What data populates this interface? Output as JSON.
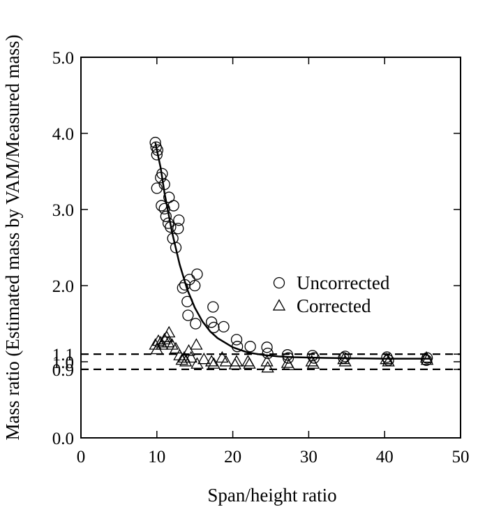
{
  "chart_data": {
    "type": "scatter",
    "xlabel": "Span/height ratio",
    "ylabel": "Mass ratio (Estimated mass by VAM/Measured mass)",
    "xlim": [
      0,
      50
    ],
    "ylim": [
      0,
      5.0
    ],
    "x_ticks": [
      0,
      10,
      20,
      30,
      40,
      50
    ],
    "x_tick_labels": [
      "0",
      "10",
      "20",
      "30",
      "40",
      "50"
    ],
    "y_ticks": [
      0,
      0.9,
      1.0,
      1.1,
      2.0,
      3.0,
      4.0,
      5.0
    ],
    "y_tick_labels": [
      "0.0",
      "0.9",
      "1.0",
      "1.1",
      "2.0",
      "3.0",
      "4.0",
      "5.0"
    ],
    "grid": false,
    "legend_position": "right",
    "reference_lines": [
      {
        "y": 1.1,
        "style": "dashed"
      },
      {
        "y": 0.9,
        "style": "dashed"
      }
    ],
    "series": [
      {
        "name": "Uncorrected",
        "marker": "circle",
        "points": [
          [
            9.8,
            3.88
          ],
          [
            9.9,
            3.82
          ],
          [
            10.0,
            3.72
          ],
          [
            10.1,
            3.78
          ],
          [
            10.0,
            3.28
          ],
          [
            10.5,
            3.42
          ],
          [
            10.7,
            3.47
          ],
          [
            10.6,
            3.05
          ],
          [
            11.0,
            3.33
          ],
          [
            11.0,
            3.01
          ],
          [
            11.2,
            2.91
          ],
          [
            11.5,
            2.82
          ],
          [
            11.6,
            3.16
          ],
          [
            11.8,
            2.77
          ],
          [
            12.1,
            2.62
          ],
          [
            12.2,
            3.05
          ],
          [
            12.5,
            2.5
          ],
          [
            12.8,
            2.75
          ],
          [
            12.9,
            2.86
          ],
          [
            13.4,
            1.97
          ],
          [
            13.7,
            2.01
          ],
          [
            14.0,
            1.79
          ],
          [
            14.1,
            1.61
          ],
          [
            14.3,
            2.08
          ],
          [
            15.0,
            2.0
          ],
          [
            15.1,
            1.5
          ],
          [
            15.3,
            2.15
          ],
          [
            17.2,
            1.52
          ],
          [
            17.4,
            1.72
          ],
          [
            17.5,
            1.45
          ],
          [
            18.8,
            1.46
          ],
          [
            20.5,
            1.29
          ],
          [
            20.6,
            1.2
          ],
          [
            22.3,
            1.2
          ],
          [
            24.5,
            1.19
          ],
          [
            24.6,
            1.11
          ],
          [
            27.2,
            1.09
          ],
          [
            27.3,
            1.05
          ],
          [
            30.5,
            1.08
          ],
          [
            30.7,
            1.05
          ],
          [
            34.6,
            1.05
          ],
          [
            34.8,
            1.07
          ],
          [
            40.3,
            1.06
          ],
          [
            40.5,
            1.02
          ],
          [
            45.5,
            1.02
          ],
          [
            45.6,
            1.05
          ]
        ]
      },
      {
        "name": "Corrected",
        "marker": "triangle",
        "points": [
          [
            9.8,
            1.22
          ],
          [
            10.0,
            1.16
          ],
          [
            10.2,
            1.27
          ],
          [
            10.5,
            1.25
          ],
          [
            10.7,
            1.22
          ],
          [
            11.0,
            1.29
          ],
          [
            11.3,
            1.32
          ],
          [
            11.5,
            1.25
          ],
          [
            11.6,
            1.38
          ],
          [
            12.0,
            1.22
          ],
          [
            12.5,
            1.17
          ],
          [
            13.0,
            1.08
          ],
          [
            13.3,
            1.02
          ],
          [
            13.6,
            1.05
          ],
          [
            13.8,
            1.0
          ],
          [
            14.2,
            1.14
          ],
          [
            14.5,
            1.05
          ],
          [
            15.2,
            1.22
          ],
          [
            15.3,
            0.97
          ],
          [
            16.2,
            1.03
          ],
          [
            17.2,
            1.0
          ],
          [
            17.5,
            0.97
          ],
          [
            18.6,
            1.05
          ],
          [
            19.1,
            1.0
          ],
          [
            20.3,
            0.96
          ],
          [
            20.5,
            1.0
          ],
          [
            22.0,
            1.0
          ],
          [
            22.2,
            0.97
          ],
          [
            24.5,
            1.0
          ],
          [
            24.6,
            0.92
          ],
          [
            27.2,
            0.98
          ],
          [
            27.4,
            0.95
          ],
          [
            30.4,
            1.0
          ],
          [
            30.6,
            0.97
          ],
          [
            34.6,
            1.03
          ],
          [
            34.8,
            1.0
          ],
          [
            40.2,
            1.03
          ],
          [
            40.5,
            1.0
          ],
          [
            45.5,
            1.05
          ],
          [
            45.6,
            1.02
          ]
        ]
      }
    ],
    "fit_curve": {
      "style": "solid",
      "points": [
        [
          9.8,
          3.88
        ],
        [
          10.5,
          3.55
        ],
        [
          11.0,
          3.22
        ],
        [
          12.0,
          2.7
        ],
        [
          13.0,
          2.28
        ],
        [
          14.0,
          1.95
        ],
        [
          15.0,
          1.71
        ],
        [
          16.0,
          1.53
        ],
        [
          17.0,
          1.4
        ],
        [
          18.0,
          1.31
        ],
        [
          20.0,
          1.19
        ],
        [
          22.0,
          1.12
        ],
        [
          24.0,
          1.09
        ],
        [
          26.0,
          1.07
        ],
        [
          28.0,
          1.06
        ],
        [
          32.0,
          1.05
        ],
        [
          40.0,
          1.04
        ],
        [
          46.0,
          1.04
        ]
      ]
    }
  }
}
